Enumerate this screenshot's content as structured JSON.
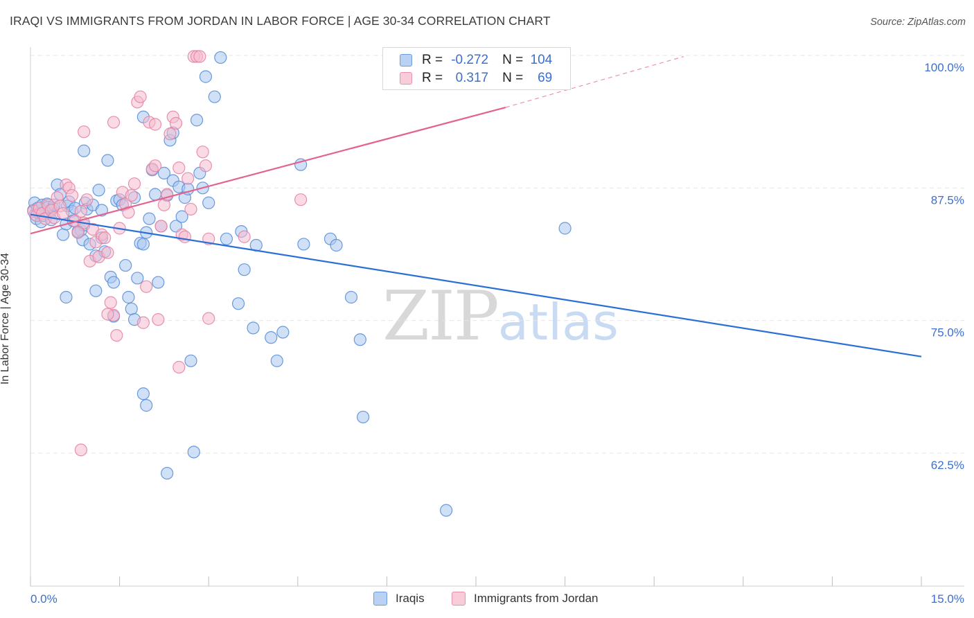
{
  "title": "IRAQI VS IMMIGRANTS FROM JORDAN IN LABOR FORCE | AGE 30-34 CORRELATION CHART",
  "source": "Source: ZipAtlas.com",
  "watermark": {
    "zip": "ZIP",
    "atlas": "atlas"
  },
  "legend_top": {
    "rows": [
      {
        "r_label": "R =",
        "r_value": "-0.272",
        "n_label": "N =",
        "n_value": "104"
      },
      {
        "r_label": "R =",
        "r_value": "0.317",
        "n_label": "N =",
        "n_value": "69"
      }
    ]
  },
  "legend_bottom": {
    "items": [
      "Iraqis",
      "Immigrants from Jordan"
    ]
  },
  "colors": {
    "iraqis_fill": "#a9c6ef",
    "iraqis_stroke": "#5b8fd9",
    "iraqis_line": "#2a6fd6",
    "jordan_fill": "#f6bccd",
    "jordan_stroke": "#e884a4",
    "jordan_line": "#e4628f",
    "tick_label": "#3a6fd1",
    "grid": "#e6e6e6"
  },
  "chart_data": {
    "type": "scatter",
    "title": "IRAQI VS IMMIGRANTS FROM JORDAN IN LABOR FORCE | AGE 30-34 CORRELATION CHART",
    "xlabel": "",
    "ylabel": "In Labor Force | Age 30-34",
    "xlim": [
      0,
      15
    ],
    "ylim": [
      51.5,
      101.5
    ],
    "x_tick_labels": [
      "0.0%",
      "15.0%"
    ],
    "y_ticks": [
      62.5,
      75.0,
      87.5,
      100.0
    ],
    "y_tick_labels": [
      "62.5%",
      "75.0%",
      "87.5%",
      "100.0%"
    ],
    "grid": true,
    "legend": "top-center",
    "series": [
      {
        "name": "Iraqis",
        "r": -0.272,
        "n": 104,
        "trend": {
          "x": [
            0.0,
            15.0
          ],
          "y": [
            85.0,
            71.6
          ]
        },
        "points": [
          [
            0.05,
            85.4
          ],
          [
            0.07,
            86.1
          ],
          [
            0.08,
            85.0
          ],
          [
            0.1,
            84.6
          ],
          [
            0.12,
            85.6
          ],
          [
            0.15,
            85.1
          ],
          [
            0.18,
            84.3
          ],
          [
            0.2,
            85.9
          ],
          [
            0.22,
            84.9
          ],
          [
            0.25,
            85.3
          ],
          [
            0.28,
            86.0
          ],
          [
            0.3,
            85.7
          ],
          [
            0.32,
            85.1
          ],
          [
            0.35,
            84.5
          ],
          [
            0.38,
            85.6
          ],
          [
            0.4,
            85.9
          ],
          [
            0.45,
            87.8
          ],
          [
            0.5,
            86.9
          ],
          [
            0.55,
            83.1
          ],
          [
            0.6,
            84.1
          ],
          [
            0.62,
            85.8
          ],
          [
            0.65,
            86.2
          ],
          [
            0.7,
            85.3
          ],
          [
            0.72,
            84.4
          ],
          [
            0.75,
            85.6
          ],
          [
            0.8,
            83.3
          ],
          [
            0.85,
            83.5
          ],
          [
            0.88,
            82.6
          ],
          [
            0.9,
            84.0
          ],
          [
            0.92,
            86.1
          ],
          [
            0.95,
            85.5
          ],
          [
            1.0,
            82.2
          ],
          [
            1.05,
            85.9
          ],
          [
            1.1,
            81.1
          ],
          [
            1.15,
            87.3
          ],
          [
            1.2,
            82.8
          ],
          [
            1.25,
            81.5
          ],
          [
            1.3,
            90.1
          ],
          [
            1.35,
            79.1
          ],
          [
            1.4,
            78.6
          ],
          [
            1.45,
            86.3
          ],
          [
            1.5,
            86.4
          ],
          [
            1.55,
            85.9
          ],
          [
            1.6,
            80.2
          ],
          [
            1.65,
            77.2
          ],
          [
            1.7,
            76.1
          ],
          [
            1.75,
            86.6
          ],
          [
            1.8,
            79.0
          ],
          [
            1.85,
            82.3
          ],
          [
            1.9,
            82.2
          ],
          [
            1.95,
            83.3
          ],
          [
            2.0,
            84.6
          ],
          [
            2.05,
            89.2
          ],
          [
            2.1,
            86.9
          ],
          [
            2.15,
            78.6
          ],
          [
            2.2,
            83.9
          ],
          [
            2.25,
            88.9
          ],
          [
            2.3,
            86.8
          ],
          [
            2.35,
            92.0
          ],
          [
            2.4,
            88.2
          ],
          [
            2.45,
            83.9
          ],
          [
            2.5,
            87.6
          ],
          [
            2.55,
            84.8
          ],
          [
            2.6,
            86.6
          ],
          [
            2.65,
            87.4
          ],
          [
            2.7,
            71.2
          ],
          [
            2.75,
            62.6
          ],
          [
            2.8,
            93.9
          ],
          [
            2.85,
            88.9
          ],
          [
            2.9,
            87.5
          ],
          [
            0.6,
            77.2
          ],
          [
            1.1,
            77.8
          ],
          [
            1.4,
            75.4
          ],
          [
            1.75,
            75.1
          ],
          [
            1.9,
            68.1
          ],
          [
            1.95,
            67.0
          ],
          [
            2.3,
            60.6
          ],
          [
            0.8,
            83.4
          ],
          [
            1.2,
            85.4
          ],
          [
            0.9,
            91.0
          ],
          [
            3.0,
            86.1
          ],
          [
            3.3,
            82.7
          ],
          [
            3.55,
            83.4
          ],
          [
            3.6,
            79.8
          ],
          [
            3.8,
            82.1
          ],
          [
            3.5,
            76.6
          ],
          [
            3.75,
            74.3
          ],
          [
            4.05,
            73.4
          ],
          [
            4.15,
            71.2
          ],
          [
            4.25,
            73.9
          ],
          [
            4.55,
            89.7
          ],
          [
            4.6,
            82.2
          ],
          [
            5.05,
            82.7
          ],
          [
            5.15,
            82.1
          ],
          [
            5.4,
            77.2
          ],
          [
            5.55,
            73.2
          ],
          [
            5.6,
            65.9
          ],
          [
            3.1,
            96.1
          ],
          [
            3.2,
            99.8
          ],
          [
            2.95,
            98.0
          ],
          [
            9.0,
            83.7
          ],
          [
            7.0,
            57.1
          ],
          [
            2.4,
            92.7
          ],
          [
            1.9,
            94.2
          ]
        ]
      },
      {
        "name": "Immigrants from Jordan",
        "r": 0.317,
        "n": 69,
        "trend": {
          "x": [
            0.0,
            8.0
          ],
          "y": [
            83.2,
            95.1
          ]
        },
        "trend_dashed": {
          "x": [
            8.0,
            11.0
          ],
          "y": [
            95.1,
            99.9
          ]
        },
        "points": [
          [
            0.05,
            85.3
          ],
          [
            0.1,
            84.9
          ],
          [
            0.15,
            85.6
          ],
          [
            0.2,
            85.1
          ],
          [
            0.25,
            84.6
          ],
          [
            0.3,
            85.9
          ],
          [
            0.35,
            85.4
          ],
          [
            0.4,
            84.7
          ],
          [
            0.45,
            86.6
          ],
          [
            0.5,
            85.8
          ],
          [
            0.55,
            85.1
          ],
          [
            0.6,
            87.8
          ],
          [
            0.65,
            87.5
          ],
          [
            0.7,
            86.8
          ],
          [
            0.75,
            84.4
          ],
          [
            0.8,
            83.3
          ],
          [
            0.85,
            85.3
          ],
          [
            0.9,
            84.2
          ],
          [
            0.95,
            86.4
          ],
          [
            1.0,
            80.6
          ],
          [
            1.05,
            83.6
          ],
          [
            1.1,
            82.4
          ],
          [
            1.15,
            81.0
          ],
          [
            1.2,
            83.1
          ],
          [
            1.25,
            82.8
          ],
          [
            1.3,
            81.4
          ],
          [
            1.35,
            76.7
          ],
          [
            1.4,
            75.5
          ],
          [
            1.45,
            73.6
          ],
          [
            1.5,
            83.7
          ],
          [
            1.55,
            87.1
          ],
          [
            1.6,
            86.0
          ],
          [
            1.65,
            85.2
          ],
          [
            1.7,
            86.8
          ],
          [
            1.75,
            87.9
          ],
          [
            1.8,
            95.6
          ],
          [
            1.85,
            96.1
          ],
          [
            1.9,
            74.8
          ],
          [
            1.95,
            78.2
          ],
          [
            2.0,
            93.7
          ],
          [
            2.05,
            89.3
          ],
          [
            2.1,
            89.6
          ],
          [
            2.15,
            75.1
          ],
          [
            2.2,
            83.9
          ],
          [
            2.25,
            85.9
          ],
          [
            2.3,
            86.9
          ],
          [
            2.35,
            92.6
          ],
          [
            2.4,
            94.2
          ],
          [
            2.45,
            93.6
          ],
          [
            2.5,
            70.6
          ],
          [
            2.55,
            83.1
          ],
          [
            2.6,
            82.9
          ],
          [
            2.65,
            88.4
          ],
          [
            2.7,
            85.5
          ],
          [
            2.75,
            99.9
          ],
          [
            2.8,
            99.9
          ],
          [
            2.85,
            99.9
          ],
          [
            2.9,
            90.9
          ],
          [
            2.95,
            89.6
          ],
          [
            0.9,
            92.8
          ],
          [
            1.4,
            93.7
          ],
          [
            2.1,
            93.5
          ],
          [
            3.0,
            75.2
          ],
          [
            3.6,
            82.9
          ],
          [
            4.55,
            86.4
          ],
          [
            0.85,
            62.8
          ],
          [
            2.5,
            89.4
          ],
          [
            1.3,
            75.6
          ],
          [
            3.0,
            82.7
          ]
        ]
      }
    ]
  }
}
